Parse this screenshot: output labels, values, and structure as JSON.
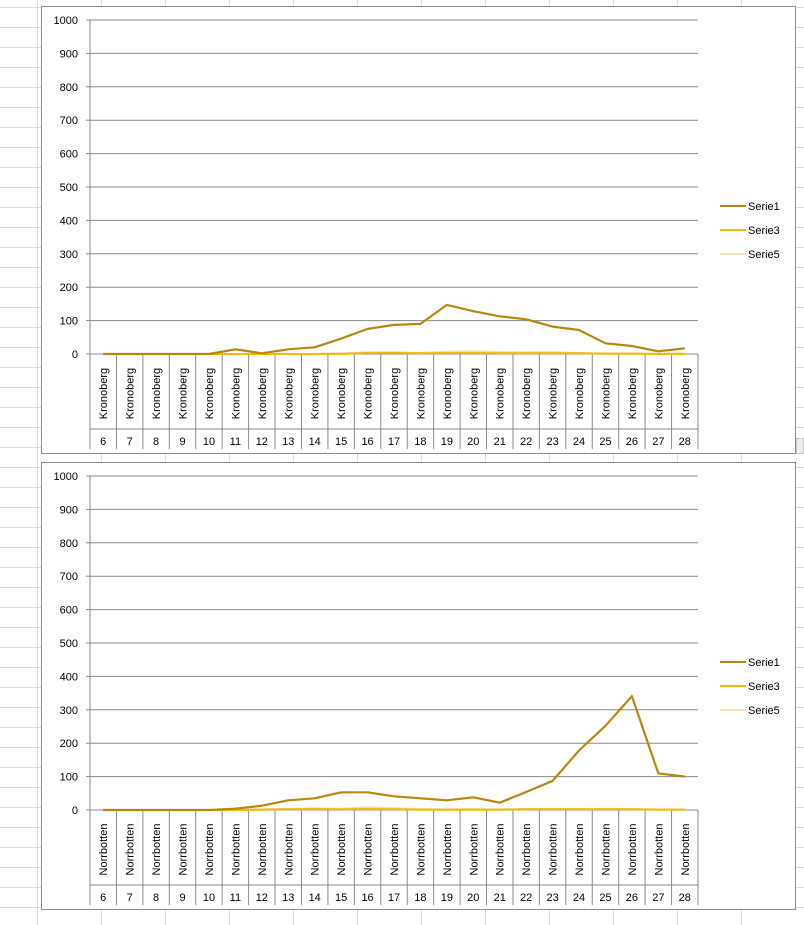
{
  "chart_data": [
    {
      "type": "line",
      "region": "Kronoberg",
      "categories": [
        "Kronoberg",
        "Kronoberg",
        "Kronoberg",
        "Kronoberg",
        "Kronoberg",
        "Kronoberg",
        "Kronoberg",
        "Kronoberg",
        "Kronoberg",
        "Kronoberg",
        "Kronoberg",
        "Kronoberg",
        "Kronoberg",
        "Kronoberg",
        "Kronoberg",
        "Kronoberg",
        "Kronoberg",
        "Kronoberg",
        "Kronoberg",
        "Kronoberg",
        "Kronoberg",
        "Kronoberg",
        "Kronoberg"
      ],
      "weeks": [
        "6",
        "7",
        "8",
        "9",
        "10",
        "11",
        "12",
        "13",
        "14",
        "15",
        "16",
        "17",
        "18",
        "19",
        "20",
        "21",
        "22",
        "23",
        "24",
        "25",
        "26",
        "27",
        "28"
      ],
      "ylim": [
        0,
        1000
      ],
      "yticks": [
        "0",
        "100",
        "200",
        "300",
        "400",
        "500",
        "600",
        "700",
        "800",
        "900",
        "1000"
      ],
      "grid": true,
      "legend": "right",
      "series": [
        {
          "name": "Serie1",
          "color": "#b8860b",
          "values": [
            0,
            0,
            0,
            0,
            0,
            14,
            2,
            14,
            20,
            46,
            75,
            87,
            90,
            147,
            128,
            113,
            104,
            82,
            72,
            32,
            24,
            8,
            17
          ]
        },
        {
          "name": "Serie3",
          "color": "#f5b800",
          "values": [
            0,
            0,
            0,
            0,
            0,
            0,
            0,
            0,
            0,
            0,
            3,
            4,
            2,
            3,
            3,
            2,
            2,
            2,
            2,
            1,
            1,
            0,
            0
          ]
        },
        {
          "name": "Serie5",
          "color": "#f5deb3",
          "values": [
            0,
            0,
            0,
            0,
            0,
            0,
            0,
            0,
            0,
            2,
            5,
            5,
            4,
            7,
            8,
            6,
            5,
            6,
            3,
            2,
            2,
            1,
            2
          ]
        }
      ]
    },
    {
      "type": "line",
      "region": "Norrbotten",
      "categories": [
        "Norrbotten",
        "Norrbotten",
        "Norrbotten",
        "Norrbotten",
        "Norrbotten",
        "Norrbotten",
        "Norrbotten",
        "Norrbotten",
        "Norrbotten",
        "Norrbotten",
        "Norrbotten",
        "Norrbotten",
        "Norrbotten",
        "Norrbotten",
        "Norrbotten",
        "Norrbotten",
        "Norrbotten",
        "Norrbotten",
        "Norrbotten",
        "Norrbotten",
        "Norrbotten",
        "Norrbotten",
        "Norrbotten"
      ],
      "weeks": [
        "6",
        "7",
        "8",
        "9",
        "10",
        "11",
        "12",
        "13",
        "14",
        "15",
        "16",
        "17",
        "18",
        "19",
        "20",
        "21",
        "22",
        "23",
        "24",
        "25",
        "26",
        "27",
        "28"
      ],
      "ylim": [
        0,
        1000
      ],
      "yticks": [
        "0",
        "100",
        "200",
        "300",
        "400",
        "500",
        "600",
        "700",
        "800",
        "900",
        "1000"
      ],
      "grid": true,
      "legend": "right",
      "series": [
        {
          "name": "Serie1",
          "color": "#b8860b",
          "values": [
            0,
            0,
            0,
            0,
            0,
            4,
            13,
            29,
            35,
            53,
            53,
            41,
            35,
            29,
            38,
            22,
            54,
            87,
            178,
            252,
            341,
            110,
            100
          ]
        },
        {
          "name": "Serie3",
          "color": "#f5b800",
          "values": [
            0,
            0,
            0,
            0,
            0,
            0,
            1,
            2,
            3,
            2,
            3,
            2,
            1,
            1,
            1,
            1,
            2,
            2,
            2,
            2,
            2,
            1,
            1
          ]
        },
        {
          "name": "Serie5",
          "color": "#f5deb3",
          "values": [
            0,
            0,
            0,
            0,
            0,
            0,
            2,
            4,
            5,
            4,
            8,
            5,
            3,
            2,
            3,
            2,
            3,
            3,
            3,
            4,
            3,
            2,
            2
          ]
        }
      ]
    }
  ]
}
